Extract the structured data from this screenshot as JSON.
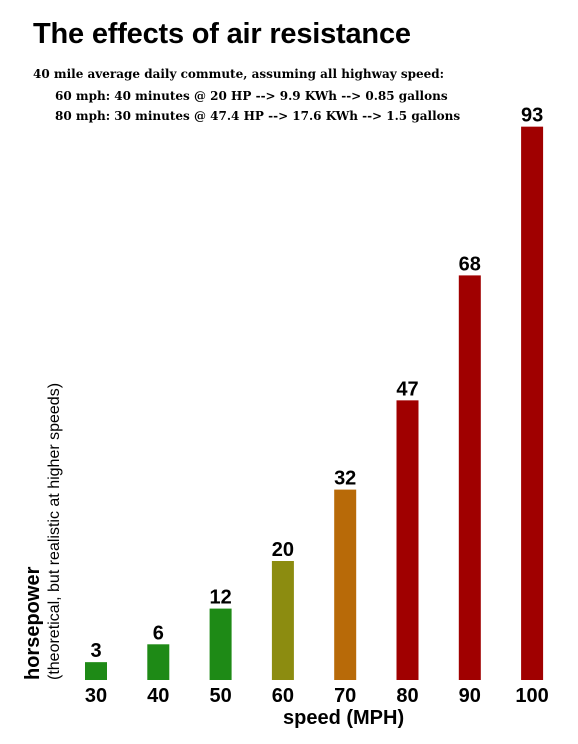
{
  "chart_data": {
    "type": "bar",
    "title": "The effects of air resistance",
    "subtitle": [
      "40 mile average daily commute, assuming all highway speed:",
      "60 mph:  40 minutes @ 20 HP  --> 9.9 KWh  --> 0.85 gallons",
      "80 mph:  30 minutes @ 47.4 HP --> 17.6 KWh --> 1.5 gallons"
    ],
    "xlabel": "speed (MPH)",
    "ylabel": "horsepower",
    "ylabel_sub": "(theoretical, but realistic at higher speeds)",
    "categories": [
      "30",
      "40",
      "50",
      "60",
      "70",
      "80",
      "90",
      "100"
    ],
    "values": [
      3,
      6,
      12,
      20,
      32,
      47,
      68,
      93
    ],
    "bar_colors": [
      "#1e8a16",
      "#1e8a16",
      "#1e8a16",
      "#8c8c10",
      "#b86a08",
      "#a00000",
      "#a00000",
      "#a00000"
    ],
    "ylim": [
      0,
      93
    ],
    "grid": false,
    "legend": "none"
  }
}
